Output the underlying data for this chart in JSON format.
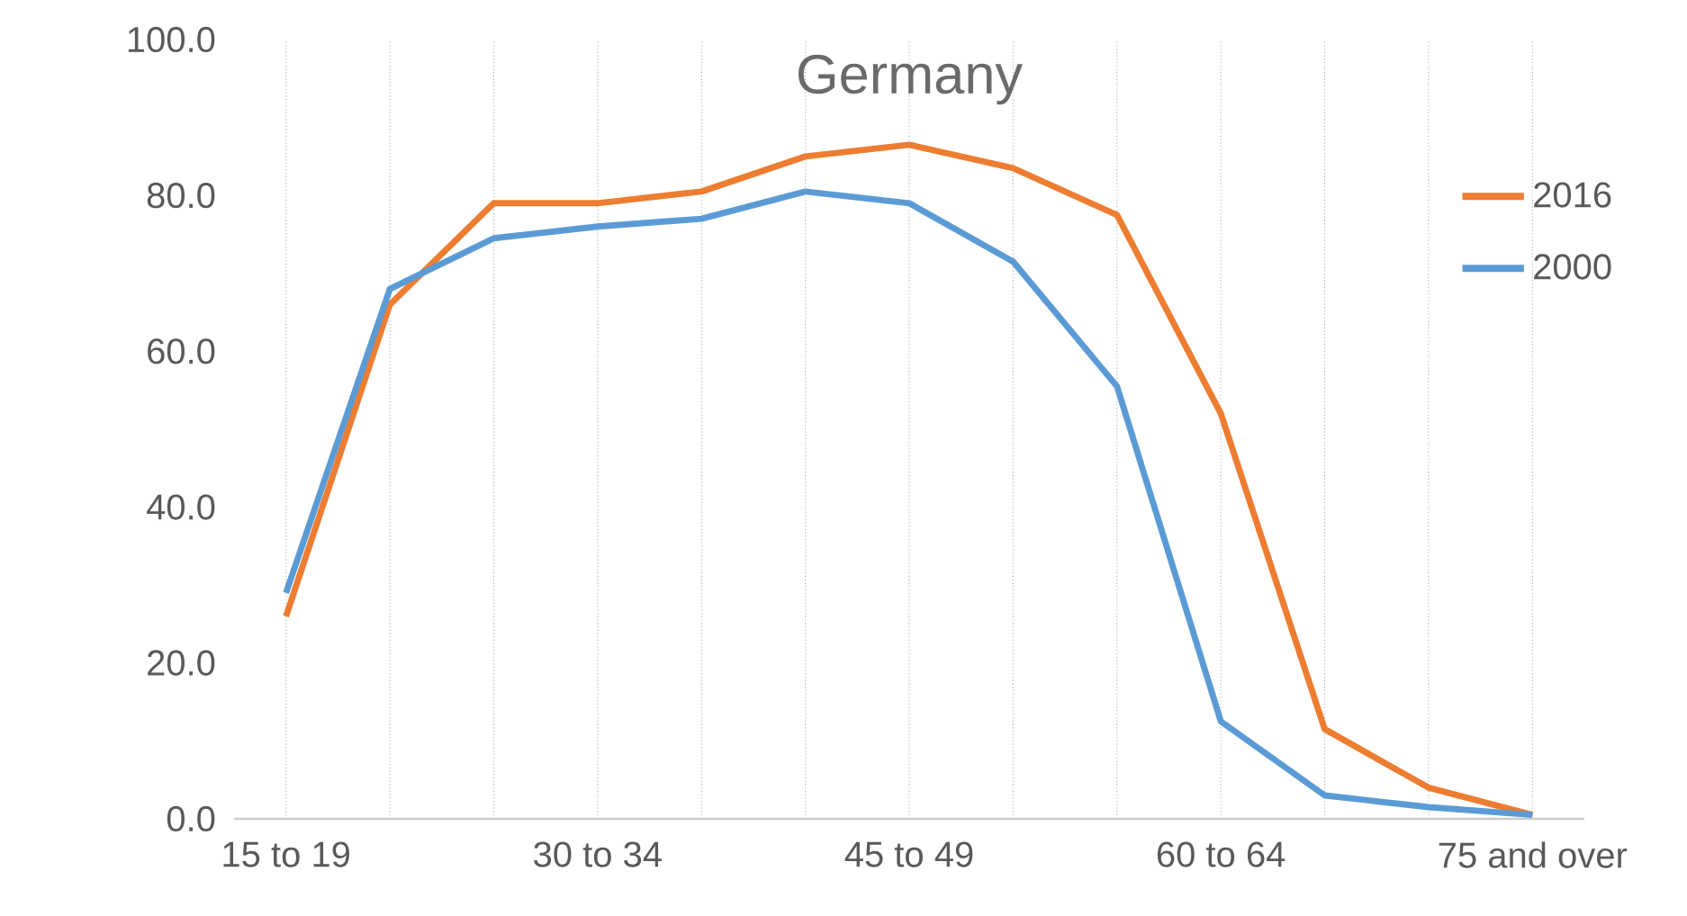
{
  "chart_data": {
    "type": "line",
    "title": "Germany",
    "categories": [
      "15 to 19",
      null,
      null,
      "30 to 34",
      null,
      null,
      "45 to 49",
      null,
      null,
      "60 to 64",
      null,
      null,
      "75 and over"
    ],
    "series": [
      {
        "name": "2016",
        "color": "#ed7d31",
        "values": [
          26,
          66,
          79,
          79,
          80.5,
          85,
          86.5,
          83.5,
          77.5,
          52,
          11.5,
          4,
          0.5
        ]
      },
      {
        "name": "2000",
        "color": "#5b9bd5",
        "values": [
          29,
          68,
          74.5,
          76,
          77,
          80.5,
          79,
          71.5,
          55.5,
          12.5,
          3,
          1.5,
          0.5
        ]
      }
    ],
    "ylim": [
      0,
      100
    ],
    "yticks": [
      {
        "value": 0,
        "label": "0.0"
      },
      {
        "value": 20,
        "label": "20.0"
      },
      {
        "value": 40,
        "label": "40.0"
      },
      {
        "value": 60,
        "label": "60.0"
      },
      {
        "value": 80,
        "label": "80.0"
      },
      {
        "value": 100,
        "label": "100.0"
      }
    ],
    "grid": "x",
    "legend": "right",
    "marker": "none",
    "line_style": "solid"
  }
}
